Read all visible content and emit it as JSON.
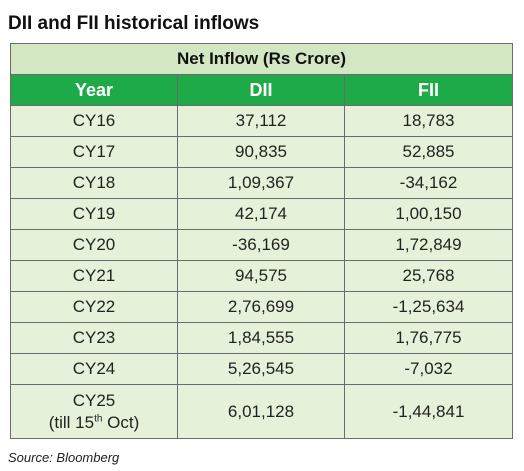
{
  "title": "DII and FII historical inflows",
  "table": {
    "group_header": "Net Inflow (Rs Crore)",
    "columns": [
      "Year",
      "DII",
      "FII"
    ],
    "rows": [
      {
        "year": "CY16",
        "dii": "37,112",
        "fii": "18,783"
      },
      {
        "year": "CY17",
        "dii": "90,835",
        "fii": "52,885"
      },
      {
        "year": "CY18",
        "dii": "1,09,367",
        "fii": "-34,162"
      },
      {
        "year": "CY19",
        "dii": "42,174",
        "fii": "1,00,150"
      },
      {
        "year": "CY20",
        "dii": "-36,169",
        "fii": "1,72,849"
      },
      {
        "year": "CY21",
        "dii": "94,575",
        "fii": "25,768"
      },
      {
        "year": "CY22",
        "dii": "2,76,699",
        "fii": "-1,25,634"
      },
      {
        "year": "CY23",
        "dii": "1,84,555",
        "fii": "1,76,775"
      },
      {
        "year": "CY24",
        "dii": "5,26,545",
        "fii": "-7,032"
      }
    ],
    "last_row": {
      "year": "CY25",
      "note_prefix": "(till 15",
      "note_sup": "th",
      "note_suffix": " Oct)",
      "dii": "6,01,128",
      "fii": "-1,44,841"
    }
  },
  "source": "Source: Bloomberg",
  "colors": {
    "header_green": "#1faa49",
    "group_header_bg": "#d3e8c2",
    "row_bg": "#e5f2d9",
    "border": "#6b6b6b"
  }
}
